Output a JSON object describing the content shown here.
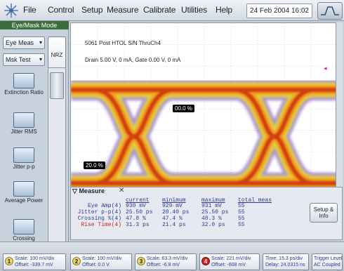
{
  "menu": {
    "items": [
      "File",
      "Control",
      "Setup",
      "Measure",
      "Calibrate",
      "Utilities",
      "Help"
    ],
    "datetime": "24 Feb 2004  16:02"
  },
  "left_panel": {
    "mode": "Eye/Mask Mode",
    "eye_meas": "Eye Meas",
    "msk_test": "Msk Test",
    "nrz": "NRZ",
    "buttons": [
      "Extinction Ratio",
      "Jitter RMS",
      "Jitter p-p",
      "Average Power",
      "Crossing Percentage"
    ]
  },
  "display": {
    "line1": "5061 Post HTOL S/N ThruCh4",
    "line2": "Drain 5.00 V, 0 mA, Gate 0.00 V, 0 mA",
    "marker_top": "00.0 %",
    "marker_left": "20.0 %"
  },
  "measure": {
    "title": "Measure",
    "headers": [
      "current",
      "minimum",
      "maximum",
      "total meas"
    ],
    "rows": [
      {
        "label": "Eye Amp(4)",
        "current": "930 mV",
        "minimum": "929 mV",
        "maximum": "931 mV",
        "total": "55"
      },
      {
        "label": "Jitter p-p(4)",
        "current": "25.50 ps",
        "minimum": "20.40 ps",
        "maximum": "25.50 ps",
        "total": "55"
      },
      {
        "label": "Crossing %(4)",
        "current": "47.8 %",
        "minimum": "47.4 %",
        "maximum": "48.3 %",
        "total": "55"
      },
      {
        "label": "Rise Time(4)",
        "current": "31.3 ps",
        "minimum": "21.4 ps",
        "maximum": "32.0 ps",
        "total": "55"
      }
    ],
    "setup_info": "Setup & Info"
  },
  "bottom": {
    "channels": [
      {
        "num": "1",
        "scale": "Scale: 100 mV/div",
        "offset": "Offset: -339.7 mV"
      },
      {
        "num": "2",
        "scale": "Scale: 100 mV/div",
        "offset": "Offset: 0.0 V"
      },
      {
        "num": "3",
        "scale": "Scale: 63.3 mV/div",
        "offset": "Offset: -6.8 mV"
      },
      {
        "num": "4",
        "scale": "Scale: 221 mV/div",
        "offset": "Offset: -608 mV"
      }
    ],
    "time": "Time: 15.3 ps/div",
    "delay": "Delay: 24.0315 ns",
    "trigger": "Trigger Level",
    "coupling": "AC Coupled"
  },
  "colors": {
    "eye_core": "#d04010",
    "eye_mid": "#f0a020",
    "eye_edge": "#e8d830",
    "eye_outer": "#6030c0",
    "grid": "#a0a8b4",
    "measure_text": "#2a3a9a",
    "rise_time_label": "#d02020"
  }
}
